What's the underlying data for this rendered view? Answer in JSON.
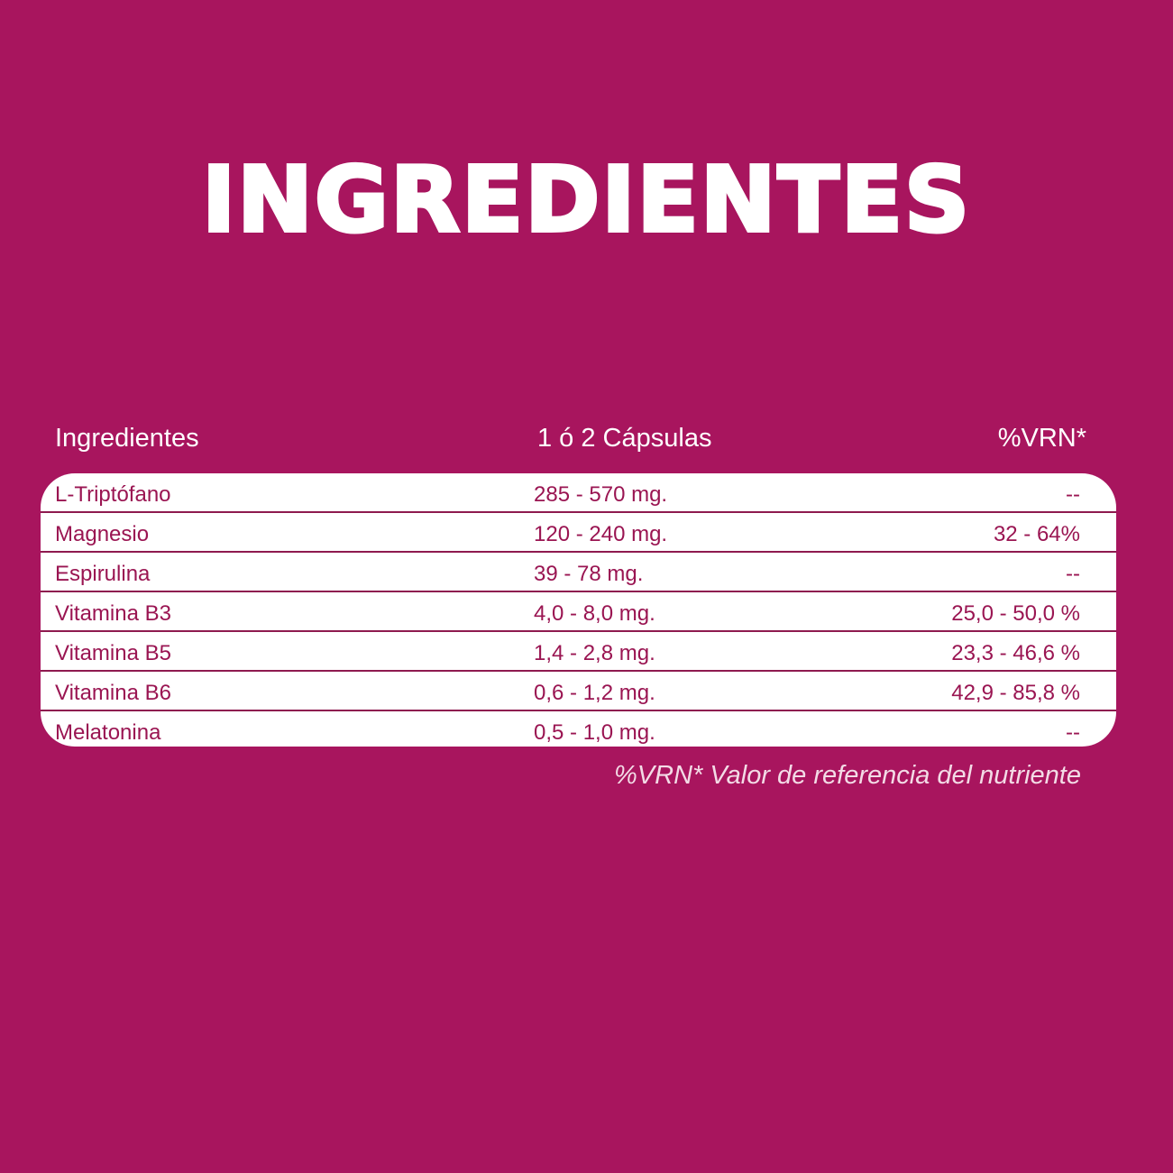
{
  "title": "INGREDIENTES",
  "table": {
    "headers": {
      "ingredient": "Ingredientes",
      "dose": "1 ó 2 Cápsulas",
      "vrn": "%VRN*"
    },
    "rows": [
      {
        "ingredient": "L-Triptófano",
        "dose": "285 - 570 mg.",
        "vrn": "--"
      },
      {
        "ingredient": "Magnesio",
        "dose": "120 - 240 mg.",
        "vrn": "32 - 64%"
      },
      {
        "ingredient": "Espirulina",
        "dose": "39  -  78 mg.",
        "vrn": "--"
      },
      {
        "ingredient": "Vitamina B3",
        "dose": "4,0 -  8,0 mg.",
        "vrn": "25,0 - 50,0 %"
      },
      {
        "ingredient": "Vitamina B5",
        "dose": "1,4 -  2,8 mg.",
        "vrn": "23,3 - 46,6 %"
      },
      {
        "ingredient": "Vitamina B6",
        "dose": "0,6 -  1,2 mg.",
        "vrn": "42,9 - 85,8 %"
      },
      {
        "ingredient": "Melatonina",
        "dose": "0,5 - 1,0 mg.",
        "vrn": "--"
      }
    ]
  },
  "footnote": "%VRN* Valor de referencia del nutriente",
  "colors": {
    "background": "#a8155e",
    "table_text": "#9a1552",
    "divider": "#8e1a4f",
    "table_bg": "#ffffff"
  }
}
